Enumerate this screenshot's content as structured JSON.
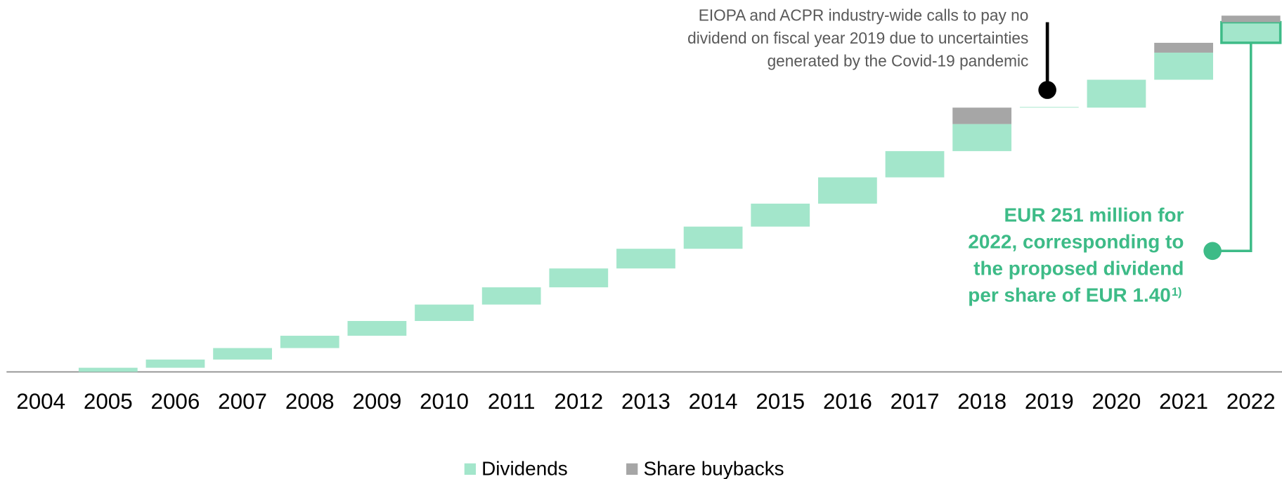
{
  "chart_data": {
    "type": "waterfall",
    "categories": [
      "2004",
      "2005",
      "2006",
      "2007",
      "2008",
      "2009",
      "2010",
      "2011",
      "2012",
      "2013",
      "2014",
      "2015",
      "2016",
      "2017",
      "2018",
      "2019",
      "2020",
      "2021",
      "2022"
    ],
    "series": [
      {
        "name": "Dividends",
        "color": "#a3e6cb",
        "values": [
          0,
          50,
          100,
          140,
          150,
          180,
          200,
          210,
          230,
          240,
          270,
          280,
          320,
          320,
          330,
          0,
          340,
          330,
          251
        ]
      },
      {
        "name": "Share buybacks",
        "color": "#a6a6a6",
        "values": [
          0,
          0,
          0,
          0,
          0,
          0,
          0,
          0,
          0,
          0,
          0,
          0,
          0,
          0,
          200,
          0,
          0,
          120,
          80
        ]
      }
    ],
    "annotations": [
      {
        "lines": [
          "EIOPA and ACPR industry-wide calls to pay no",
          "dividend on fiscal year 2019 due to uncertainties",
          "generated by the Covid-19 pandemic"
        ],
        "color": "#595959"
      },
      {
        "lines": [
          "EUR 251 million for",
          "2022, corresponding to",
          "the proposed dividend",
          "per share of EUR 1.40"
        ],
        "footnote": "1)",
        "color": "#3dbb87"
      }
    ]
  }
}
